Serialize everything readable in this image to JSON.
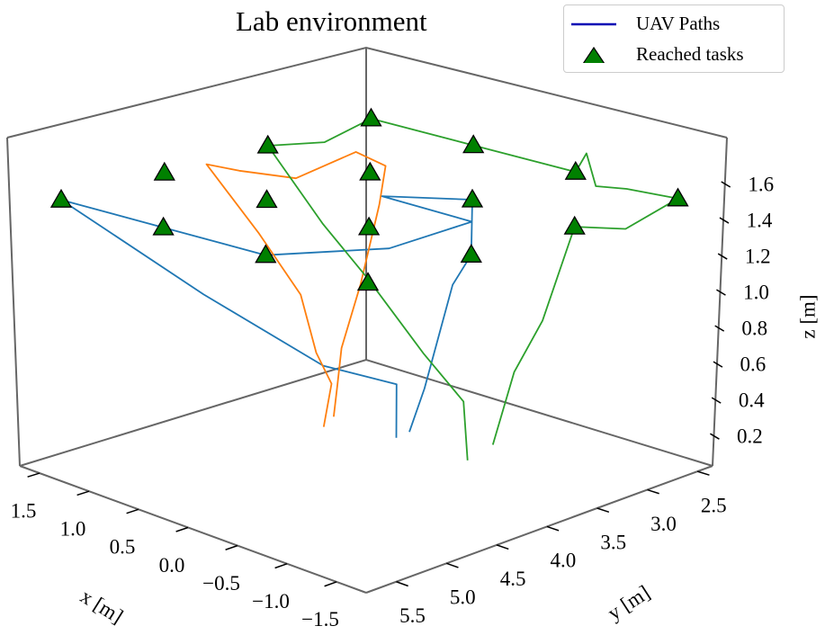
{
  "title": "Lab environment",
  "legend": {
    "items": [
      {
        "label": "UAV Paths",
        "marker": "line",
        "color": "#0000b4"
      },
      {
        "label": "Reached tasks",
        "marker": "triangle",
        "color": "#008000"
      }
    ]
  },
  "chart_data": {
    "type": "line3d",
    "title": "Lab environment",
    "xlabel": "x [m]",
    "ylabel": "y [m]",
    "zlabel": "z [m]",
    "xlim": [
      -1.8,
      1.7
    ],
    "ylim": [
      2.35,
      5.8
    ],
    "zlim": [
      0.036,
      1.86
    ],
    "grid": false,
    "legend_position": "top-right",
    "xticks": [
      {
        "v": 1.5,
        "label": "1.5"
      },
      {
        "v": 1.0,
        "label": "1.0"
      },
      {
        "v": 0.5,
        "label": "0.5"
      },
      {
        "v": 0.0,
        "label": "0.0"
      },
      {
        "v": -0.5,
        "label": "−0.5"
      },
      {
        "v": -1.0,
        "label": "−1.0"
      },
      {
        "v": -1.5,
        "label": "−1.5"
      }
    ],
    "yticks": [
      {
        "v": 5.5,
        "label": "5.5"
      },
      {
        "v": 5.0,
        "label": "5.0"
      },
      {
        "v": 4.5,
        "label": "4.5"
      },
      {
        "v": 4.0,
        "label": "4.0"
      },
      {
        "v": 3.5,
        "label": "3.5"
      },
      {
        "v": 3.0,
        "label": "3.0"
      },
      {
        "v": 2.5,
        "label": "2.5"
      }
    ],
    "zticks": [
      {
        "v": 0.2,
        "label": "0.2"
      },
      {
        "v": 0.4,
        "label": "0.4"
      },
      {
        "v": 0.6,
        "label": "0.6"
      },
      {
        "v": 0.8,
        "label": "0.8"
      },
      {
        "v": 1.0,
        "label": "1.0"
      },
      {
        "v": 1.2,
        "label": "1.2"
      },
      {
        "v": 1.4,
        "label": "1.4"
      },
      {
        "v": 1.6,
        "label": "1.6"
      }
    ],
    "series": [
      {
        "color": "#1f77b4",
        "points": [
          [
            0.32,
            3.41,
            0.03
          ],
          [
            0.32,
            3.41,
            0.33
          ],
          [
            0.64,
            3.82,
            0.45
          ],
          [
            0.91,
            4.72,
            0.95
          ],
          [
            1.5,
            5.5,
            1.5
          ],
          [
            0.5,
            5.5,
            1.5
          ],
          [
            -0.5,
            5.5,
            1.5
          ],
          [
            -0.98,
            4.78,
            1.5
          ],
          [
            -0.9,
            3.9,
            1.5
          ],
          [
            0.01,
            3.87,
            1.5
          ],
          [
            -0.5,
            3.5,
            1.5
          ],
          [
            -1.5,
            4.5,
            1.5
          ],
          [
            -0.62,
            3.8,
            1.1
          ],
          [
            -0.09,
            3.54,
            0.4
          ],
          [
            0.29,
            3.31,
            0.05
          ]
        ]
      },
      {
        "color": "#ff7f0e",
        "points": [
          [
            0.77,
            3.59,
            0.1
          ],
          [
            0.71,
            3.61,
            0.3
          ],
          [
            0.69,
            3.59,
            0.5
          ],
          [
            0.47,
            3.62,
            0.9
          ],
          [
            0.52,
            3.39,
            1.3
          ],
          [
            0.55,
            3.3,
            1.5
          ],
          [
            0.79,
            3.35,
            1.55
          ],
          [
            0.76,
            3.96,
            1.5
          ],
          [
            1.01,
            4.26,
            1.55
          ],
          [
            1.29,
            4.3,
            1.55
          ],
          [
            0.93,
            4.16,
            1.2
          ],
          [
            0.74,
            3.94,
            0.85
          ],
          [
            0.74,
            3.79,
            0.5
          ],
          [
            0.74,
            3.64,
            0.3
          ],
          [
            0.8,
            3.66,
            0.05
          ]
        ]
      },
      {
        "color": "#2ca02c",
        "points": [
          [
            -0.39,
            3.4,
            0.03
          ],
          [
            -0.07,
            3.13,
            0.25
          ],
          [
            0.18,
            3.28,
            0.5
          ],
          [
            0.53,
            3.49,
            0.9
          ],
          [
            0.77,
            3.69,
            1.2
          ],
          [
            1.5,
            3.5,
            1.5
          ],
          [
            1.45,
            3.0,
            1.45
          ],
          [
            1.5,
            2.5,
            1.5
          ],
          [
            0.5,
            2.5,
            1.5
          ],
          [
            -0.5,
            2.5,
            1.5
          ],
          [
            -0.6,
            2.5,
            1.62
          ],
          [
            -0.7,
            2.5,
            1.45
          ],
          [
            -1.0,
            2.5,
            1.48
          ],
          [
            -1.5,
            2.5,
            1.5
          ],
          [
            -1.3,
            2.8,
            1.35
          ],
          [
            -1.5,
            3.5,
            1.5
          ],
          [
            -0.76,
            3.05,
            0.8
          ],
          [
            -0.43,
            2.99,
            0.45
          ],
          [
            -0.34,
            3.1,
            0.05
          ]
        ]
      }
    ],
    "tasks": {
      "color": "#008000",
      "points": [
        [
          1.5,
          5.5,
          1.5
        ],
        [
          0.5,
          5.5,
          1.5
        ],
        [
          -0.5,
          5.5,
          1.5
        ],
        [
          -1.5,
          5.5,
          1.5
        ],
        [
          1.5,
          4.5,
          1.5
        ],
        [
          0.5,
          4.5,
          1.5
        ],
        [
          -0.5,
          4.5,
          1.5
        ],
        [
          -1.5,
          4.5,
          1.5
        ],
        [
          1.5,
          3.5,
          1.5
        ],
        [
          0.5,
          3.5,
          1.5
        ],
        [
          -0.5,
          3.5,
          1.5
        ],
        [
          -1.5,
          3.5,
          1.5
        ],
        [
          1.5,
          2.5,
          1.5
        ],
        [
          0.5,
          2.5,
          1.5
        ],
        [
          -0.5,
          2.5,
          1.5
        ],
        [
          -1.5,
          2.5,
          1.5
        ]
      ]
    }
  }
}
